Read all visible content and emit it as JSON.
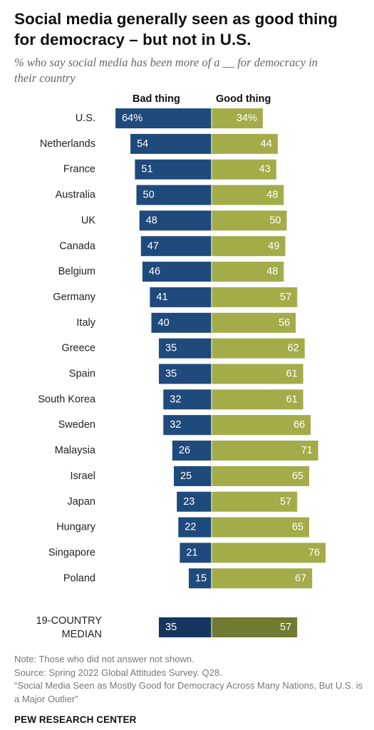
{
  "title": "Social media generally seen as good thing for democracy – but not in U.S.",
  "subtitle": "% who say social media has been more of a __ for democracy in their country",
  "columns": {
    "bad": "Bad thing",
    "good": "Good thing"
  },
  "colors": {
    "bad": "#1f4a7c",
    "good": "#a3ac48",
    "median_bad": "#17365f",
    "median_good": "#707a31",
    "label_bad": "#ffffff",
    "label_good": "#ffffff"
  },
  "chart_data": {
    "type": "bar",
    "orientation": "horizontal-diverging",
    "categories": [
      "U.S.",
      "Netherlands",
      "France",
      "Australia",
      "UK",
      "Canada",
      "Belgium",
      "Germany",
      "Italy",
      "Greece",
      "Spain",
      "South Korea",
      "Sweden",
      "Malaysia",
      "Israel",
      "Japan",
      "Hungary",
      "Singapore",
      "Poland"
    ],
    "series": [
      {
        "name": "Bad thing",
        "values": [
          64,
          54,
          51,
          50,
          48,
          47,
          46,
          41,
          40,
          35,
          35,
          32,
          32,
          26,
          25,
          23,
          22,
          21,
          15
        ]
      },
      {
        "name": "Good thing",
        "values": [
          34,
          44,
          43,
          48,
          50,
          49,
          48,
          57,
          56,
          62,
          61,
          61,
          66,
          71,
          65,
          57,
          65,
          76,
          67
        ]
      }
    ],
    "value_labels": {
      "bad": [
        "64%",
        "54",
        "51",
        "50",
        "48",
        "47",
        "46",
        "41",
        "40",
        "35",
        "35",
        "32",
        "32",
        "26",
        "25",
        "23",
        "22",
        "21",
        "15"
      ],
      "good": [
        "34%",
        "44",
        "43",
        "48",
        "50",
        "49",
        "48",
        "57",
        "56",
        "62",
        "61",
        "61",
        "66",
        "71",
        "65",
        "57",
        "65",
        "76",
        "67"
      ]
    },
    "median": {
      "label_lines": [
        "19-COUNTRY",
        "MEDIAN"
      ],
      "bad": 35,
      "good": 57,
      "bad_label": "35",
      "good_label": "57"
    }
  },
  "notes": [
    "Note: Those who did not answer not shown.",
    "Source: Spring 2022 Global Attitudes Survey. Q28.",
    "“Social Media Seen as Mostly Good for Democracy Across Many Nations, But U.S. is a Major Outlier”"
  ],
  "brand": "PEW RESEARCH CENTER"
}
